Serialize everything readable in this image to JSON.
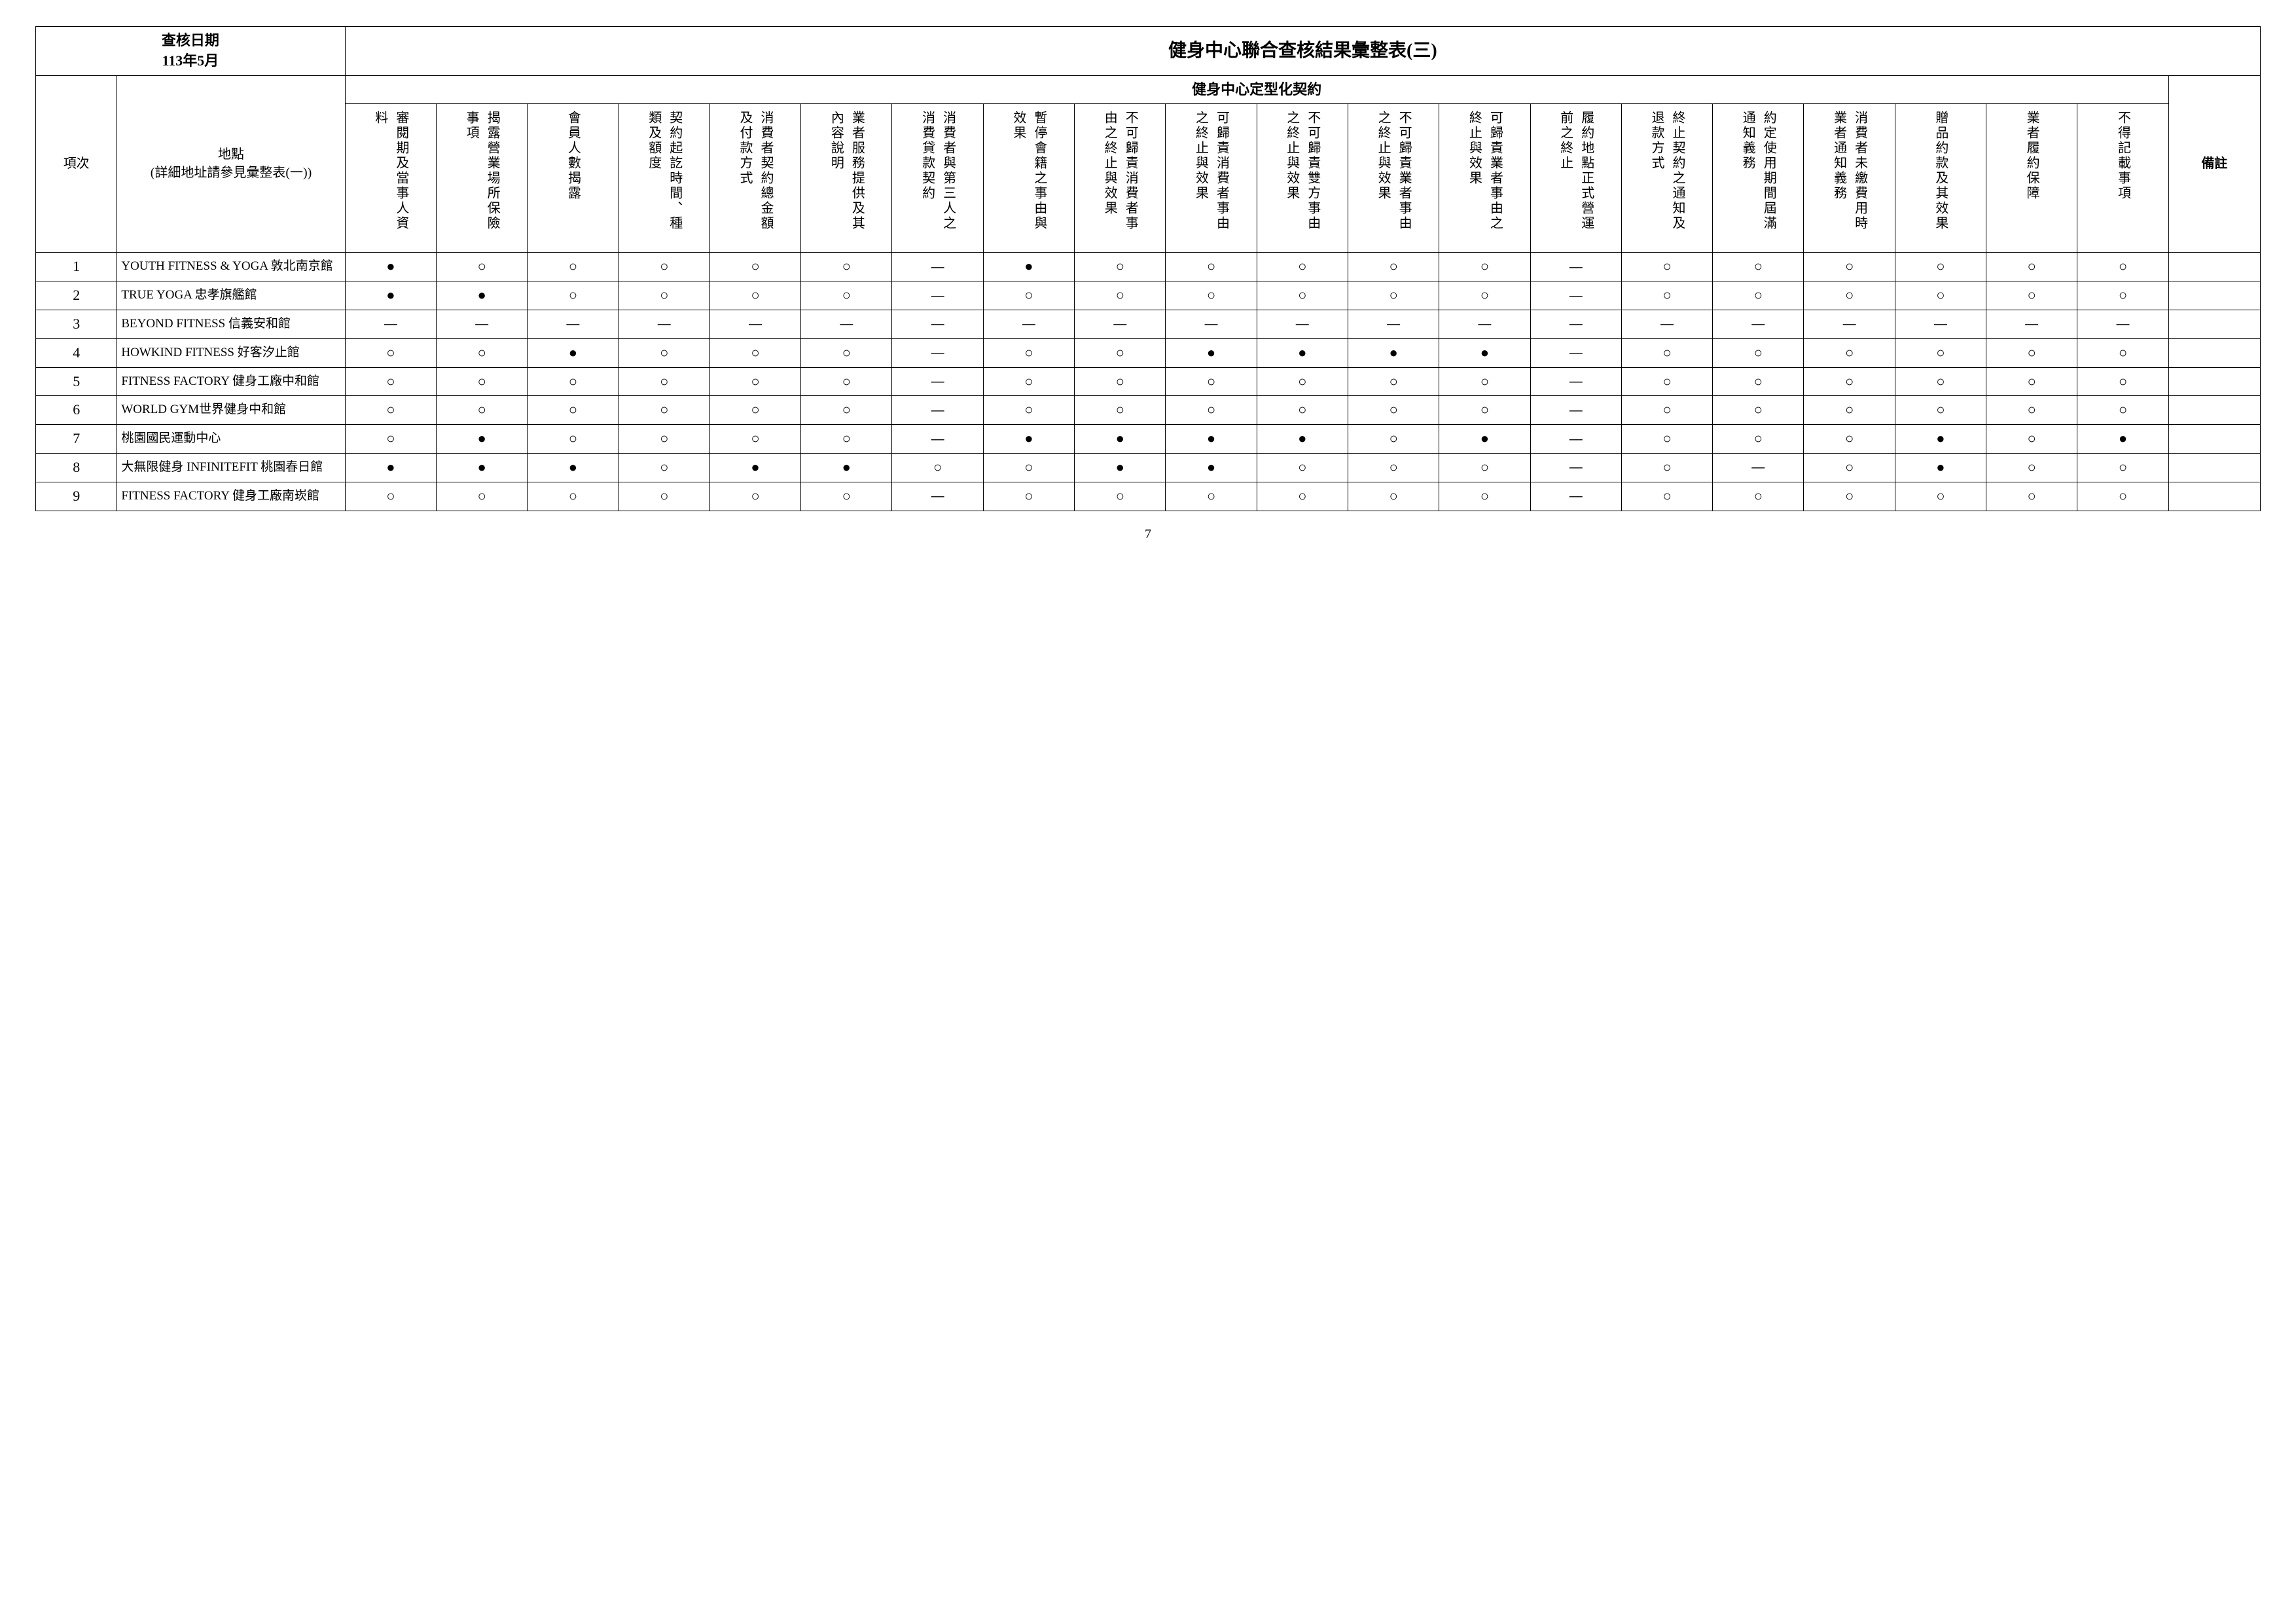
{
  "header_date_label": "查核日期\n113年5月",
  "title": "健身中心聯合查核結果彙整表(三)",
  "sub_title": "健身中心定型化契約",
  "notes_header": "備註",
  "row_header_idx": "項次",
  "row_header_loc": "地點\n(詳細地址請參見彙整表(一))",
  "columns": [
    "審閱期及當事人資料",
    "揭露營業場所保險事項",
    "會員人數揭露",
    "契約起訖時間、種類及額度",
    "消費者契約總金額及付款方式",
    "業者服務提供及其內容說明",
    "消費者與第三人之消費貸款契約",
    "暫停會籍之事由與效果",
    "不可歸責消費者事由之終止與效果",
    "可歸責消費者事由之終止與效果",
    "不可歸責雙方事由之終止與效果",
    "不可歸責業者事由之終止與效果",
    "可歸責業者事由之終止與效果",
    "履約地點正式營運前之終止",
    "終止契約之通知及退款方式",
    "約定使用期間屆滿通知義務",
    "消費者未繳費用時業者通知義務",
    "贈品約款及其效果",
    "業者履約保障",
    "不得記載事項"
  ],
  "rows": [
    {
      "idx": "1",
      "loc": "YOUTH FITNESS & YOGA 敦北南京館",
      "cells": [
        "●",
        "○",
        "○",
        "○",
        "○",
        "○",
        "—",
        "●",
        "○",
        "○",
        "○",
        "○",
        "○",
        "—",
        "○",
        "○",
        "○",
        "○",
        "○",
        "○"
      ],
      "note": ""
    },
    {
      "idx": "2",
      "loc": "TRUE YOGA 忠孝旗艦館",
      "cells": [
        "●",
        "●",
        "○",
        "○",
        "○",
        "○",
        "—",
        "○",
        "○",
        "○",
        "○",
        "○",
        "○",
        "—",
        "○",
        "○",
        "○",
        "○",
        "○",
        "○"
      ],
      "note": ""
    },
    {
      "idx": "3",
      "loc": "BEYOND FITNESS 信義安和館",
      "cells": [
        "—",
        "—",
        "—",
        "—",
        "—",
        "—",
        "—",
        "—",
        "—",
        "—",
        "—",
        "—",
        "—",
        "—",
        "—",
        "—",
        "—",
        "—",
        "—",
        "—"
      ],
      "note": ""
    },
    {
      "idx": "4",
      "loc": "HOWKIND FITNESS 好客汐止館",
      "cells": [
        "○",
        "○",
        "●",
        "○",
        "○",
        "○",
        "—",
        "○",
        "○",
        "●",
        "●",
        "●",
        "●",
        "—",
        "○",
        "○",
        "○",
        "○",
        "○",
        "○"
      ],
      "note": ""
    },
    {
      "idx": "5",
      "loc": "FITNESS FACTORY 健身工廠中和館",
      "cells": [
        "○",
        "○",
        "○",
        "○",
        "○",
        "○",
        "—",
        "○",
        "○",
        "○",
        "○",
        "○",
        "○",
        "—",
        "○",
        "○",
        "○",
        "○",
        "○",
        "○"
      ],
      "note": ""
    },
    {
      "idx": "6",
      "loc": "WORLD GYM世界健身中和館",
      "cells": [
        "○",
        "○",
        "○",
        "○",
        "○",
        "○",
        "—",
        "○",
        "○",
        "○",
        "○",
        "○",
        "○",
        "—",
        "○",
        "○",
        "○",
        "○",
        "○",
        "○"
      ],
      "note": ""
    },
    {
      "idx": "7",
      "loc": "桃園國民運動中心",
      "cells": [
        "○",
        "●",
        "○",
        "○",
        "○",
        "○",
        "—",
        "●",
        "●",
        "●",
        "●",
        "○",
        "●",
        "—",
        "○",
        "○",
        "○",
        "●",
        "○",
        "●"
      ],
      "note": ""
    },
    {
      "idx": "8",
      "loc": "大無限健身 INFINITEFIT 桃園春日館",
      "cells": [
        "●",
        "●",
        "●",
        "○",
        "●",
        "●",
        "○",
        "○",
        "●",
        "●",
        "○",
        "○",
        "○",
        "—",
        "○",
        "—",
        "○",
        "●",
        "○",
        "○"
      ],
      "note": ""
    },
    {
      "idx": "9",
      "loc": "FITNESS FACTORY 健身工廠南崁館",
      "cells": [
        "○",
        "○",
        "○",
        "○",
        "○",
        "○",
        "—",
        "○",
        "○",
        "○",
        "○",
        "○",
        "○",
        "—",
        "○",
        "○",
        "○",
        "○",
        "○",
        "○"
      ],
      "note": ""
    }
  ],
  "page_number": "7",
  "symbols": {
    "filled": "●",
    "empty": "○",
    "dash": "—"
  },
  "style": {
    "background_color": "#ffffff",
    "text_color": "#000000",
    "border_color": "#000000",
    "title_fontsize": 28,
    "header_fontsize": 22,
    "body_fontsize": 20
  }
}
